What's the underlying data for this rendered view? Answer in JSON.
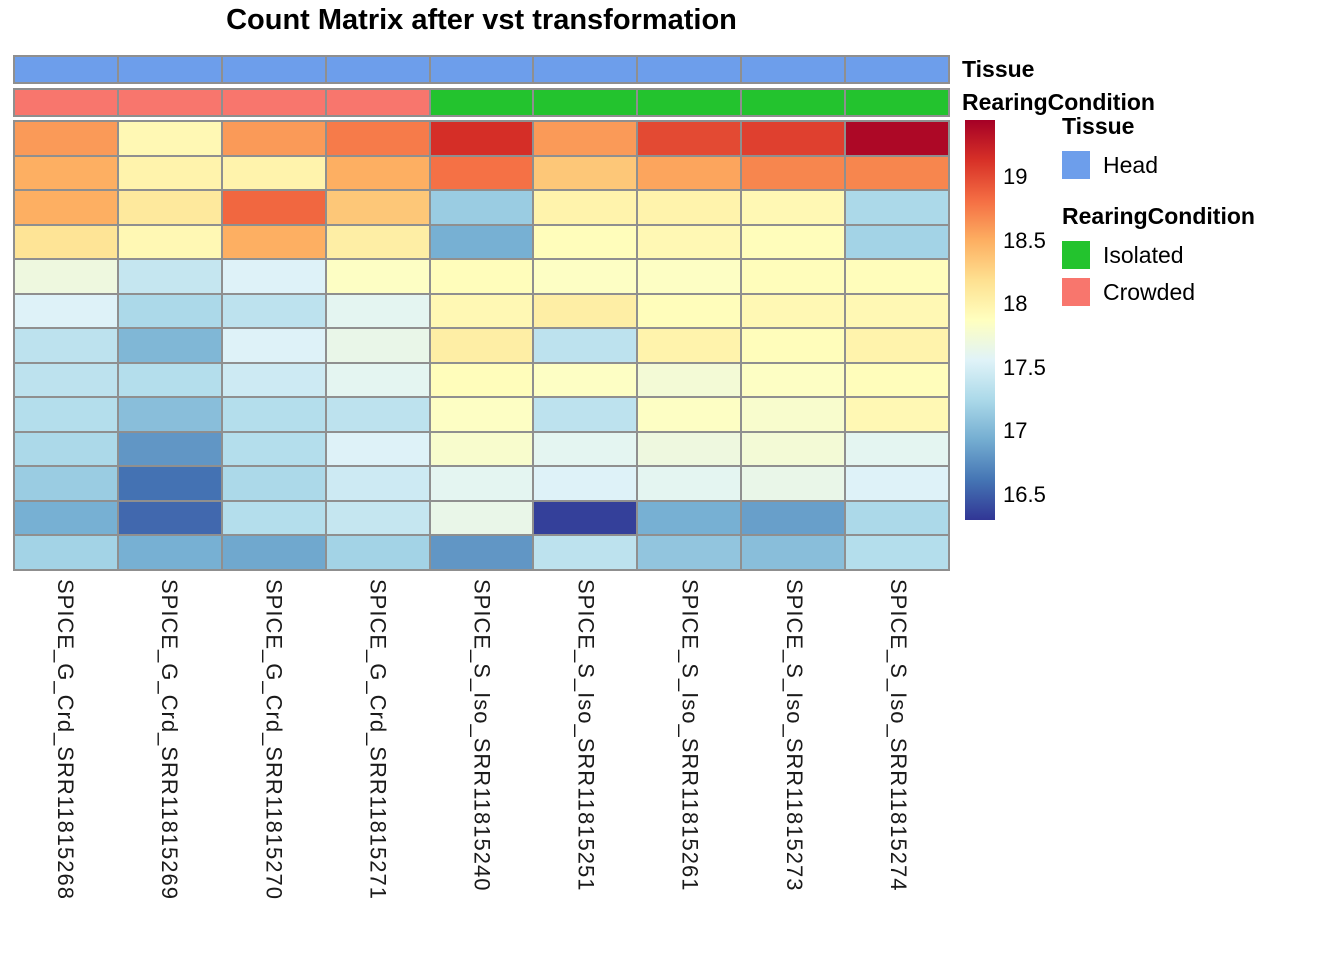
{
  "title": "Count Matrix after vst transformation",
  "annotations": {
    "tissue_label": "Tissue",
    "rearing_label": "RearingCondition",
    "tissue_values": [
      "Head",
      "Head",
      "Head",
      "Head",
      "Head",
      "Head",
      "Head",
      "Head",
      "Head"
    ],
    "rearing_values": [
      "Crowded",
      "Crowded",
      "Crowded",
      "Crowded",
      "Isolated",
      "Isolated",
      "Isolated",
      "Isolated",
      "Isolated"
    ]
  },
  "annotation_colors": {
    "Head": "#6D9EEB",
    "Isolated": "#23C32E",
    "Crowded": "#F8766D"
  },
  "legend": {
    "tissue_title": "Tissue",
    "tissue_items": [
      {
        "label": "Head",
        "color": "#6D9EEB"
      }
    ],
    "rearing_title": "RearingCondition",
    "rearing_items": [
      {
        "label": "Isolated",
        "color": "#23C32E"
      },
      {
        "label": "Crowded",
        "color": "#F8766D"
      }
    ]
  },
  "chart_data": {
    "type": "heatmap",
    "title": "Count Matrix after vst transformation",
    "columns": [
      "SPICE_G_Crd_SRR11815268",
      "SPICE_G_Crd_SRR11815269",
      "SPICE_G_Crd_SRR11815270",
      "SPICE_G_Crd_SRR11815271",
      "SPICE_S_Iso_SRR11815240",
      "SPICE_S_Iso_SRR11815251",
      "SPICE_S_Iso_SRR11815261",
      "SPICE_S_Iso_SRR11815273",
      "SPICE_S_Iso_SRR11815274"
    ],
    "column_tissue": [
      "Head",
      "Head",
      "Head",
      "Head",
      "Head",
      "Head",
      "Head",
      "Head",
      "Head"
    ],
    "column_rearing": [
      "Crowded",
      "Crowded",
      "Crowded",
      "Crowded",
      "Isolated",
      "Isolated",
      "Isolated",
      "Isolated",
      "Isolated"
    ],
    "values": [
      [
        18.6,
        17.95,
        18.6,
        18.75,
        19.15,
        18.6,
        19.0,
        19.05,
        19.4
      ],
      [
        18.5,
        18.0,
        18.0,
        18.5,
        18.8,
        18.35,
        18.55,
        18.7,
        18.7
      ],
      [
        18.5,
        18.1,
        18.85,
        18.35,
        17.15,
        18.0,
        18.0,
        17.95,
        17.25
      ],
      [
        18.15,
        17.95,
        18.5,
        18.05,
        16.95,
        17.9,
        17.95,
        17.9,
        17.2
      ],
      [
        17.7,
        17.4,
        17.55,
        17.85,
        17.9,
        17.85,
        17.85,
        17.9,
        17.9
      ],
      [
        17.55,
        17.25,
        17.35,
        17.6,
        17.95,
        18.05,
        17.9,
        17.95,
        17.95
      ],
      [
        17.35,
        17.0,
        17.55,
        17.65,
        18.05,
        17.35,
        18.0,
        17.9,
        18.0
      ],
      [
        17.35,
        17.3,
        17.45,
        17.6,
        17.9,
        17.85,
        17.75,
        17.85,
        17.9
      ],
      [
        17.3,
        17.05,
        17.3,
        17.35,
        17.85,
        17.35,
        17.85,
        17.8,
        17.95
      ],
      [
        17.25,
        16.8,
        17.3,
        17.55,
        17.8,
        17.6,
        17.7,
        17.75,
        17.6
      ],
      [
        17.15,
        16.6,
        17.25,
        17.45,
        17.6,
        17.55,
        17.6,
        17.65,
        17.55
      ],
      [
        16.95,
        16.55,
        17.3,
        17.4,
        17.65,
        16.35,
        16.95,
        16.85,
        17.25
      ],
      [
        17.2,
        16.95,
        16.9,
        17.2,
        16.8,
        17.35,
        17.1,
        17.05,
        17.3
      ]
    ],
    "vmin": 16.3,
    "vmax": 19.45,
    "colormap": "RdYlBu_r",
    "colormap_stops": [
      "#313695",
      "#4575b4",
      "#74add1",
      "#abd9e9",
      "#e0f3f8",
      "#ffffbf",
      "#fee090",
      "#fdae61",
      "#f46d43",
      "#d73027",
      "#a50026"
    ],
    "colorbar_ticks": [
      19,
      18.5,
      18,
      17.5,
      17,
      16.5
    ],
    "legend_position": "right",
    "grid": true,
    "cell_border_color": "#8f8f8f"
  }
}
